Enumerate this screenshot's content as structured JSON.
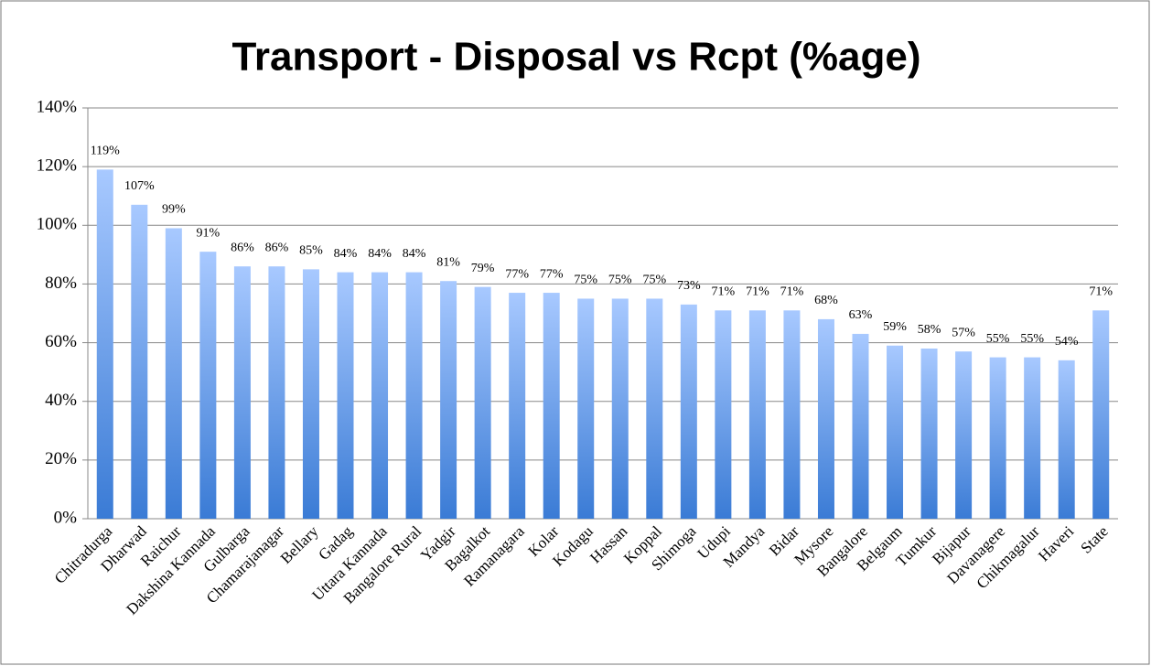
{
  "chart_data": {
    "type": "bar",
    "title": "Transport - Disposal vs Rcpt (%age)",
    "categories": [
      "Chitradurga",
      "Dharwad",
      "Raichur",
      "Dakshina Kannada",
      "Gulbarga",
      "Chamarajanagar",
      "Bellary",
      "Gadag",
      "Uttara Kannada",
      "Bangalore Rural",
      "Yadgir",
      "Bagalkot",
      "Ramanagara",
      "Kolar",
      "Kodagu",
      "Hassan",
      "Koppal",
      "Shimoga",
      "Udupi",
      "Mandya",
      "Bidar",
      "Mysore",
      "Bangalore",
      "Belgaum",
      "Tumkur",
      "Bijapur",
      "Davanagere",
      "Chikmagalur",
      "Haveri",
      "State"
    ],
    "values": [
      119,
      107,
      99,
      91,
      86,
      86,
      85,
      84,
      84,
      84,
      81,
      79,
      77,
      77,
      75,
      75,
      75,
      73,
      71,
      71,
      71,
      68,
      63,
      59,
      58,
      57,
      55,
      55,
      54,
      71
    ],
    "value_labels": [
      "119%",
      "107%",
      "99%",
      "91%",
      "86%",
      "86%",
      "85%",
      "84%",
      "84%",
      "84%",
      "81%",
      "79%",
      "77%",
      "77%",
      "75%",
      "75%",
      "75%",
      "73%",
      "71%",
      "71%",
      "71%",
      "68%",
      "63%",
      "59%",
      "58%",
      "57%",
      "55%",
      "55%",
      "54%",
      "71%"
    ],
    "gradient": [
      "#a8c9ff",
      "#3a7bd5"
    ],
    "ylim": [
      0,
      140
    ],
    "yticks": [
      {
        "value": 0,
        "label": "0%"
      },
      {
        "value": 20,
        "label": "20%"
      },
      {
        "value": 40,
        "label": "40%"
      },
      {
        "value": 60,
        "label": "60%"
      },
      {
        "value": 80,
        "label": "80%"
      },
      {
        "value": 100,
        "label": "100%"
      },
      {
        "value": 120,
        "label": "120%"
      },
      {
        "value": 140,
        "label": "140%"
      }
    ],
    "grid": true
  }
}
